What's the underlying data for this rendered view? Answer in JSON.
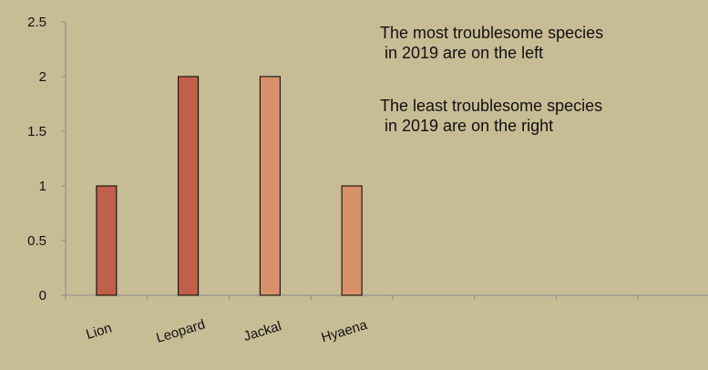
{
  "chart_data": {
    "type": "bar",
    "categories": [
      "Lion",
      "Leopard",
      "Jackal",
      "Hyaena",
      "",
      "",
      "",
      ""
    ],
    "values": [
      1,
      2,
      2,
      1,
      null,
      null,
      null,
      null
    ],
    "bar_colors": [
      "#c0604a",
      "#c0604a",
      "#d8906a",
      "#d8906a"
    ],
    "ylim": [
      0,
      2.5
    ],
    "yticks": [
      "0",
      "0.5",
      "1",
      "1.5",
      "2",
      "2.5"
    ],
    "ytick_values": [
      0,
      0.5,
      1,
      1.5,
      2,
      2.5
    ],
    "grid": false,
    "title": "",
    "xlabel": "",
    "ylabel": "",
    "annotations": [
      [
        "The most troublesome species",
        " in 2019 are on the left"
      ],
      [
        "The least troublesome species",
        " in 2019 are on the right"
      ]
    ]
  },
  "colors": {
    "background": "#c8bc95",
    "axis": "#8a8a8a",
    "bar_stroke": "#000000",
    "text": "#111111"
  }
}
